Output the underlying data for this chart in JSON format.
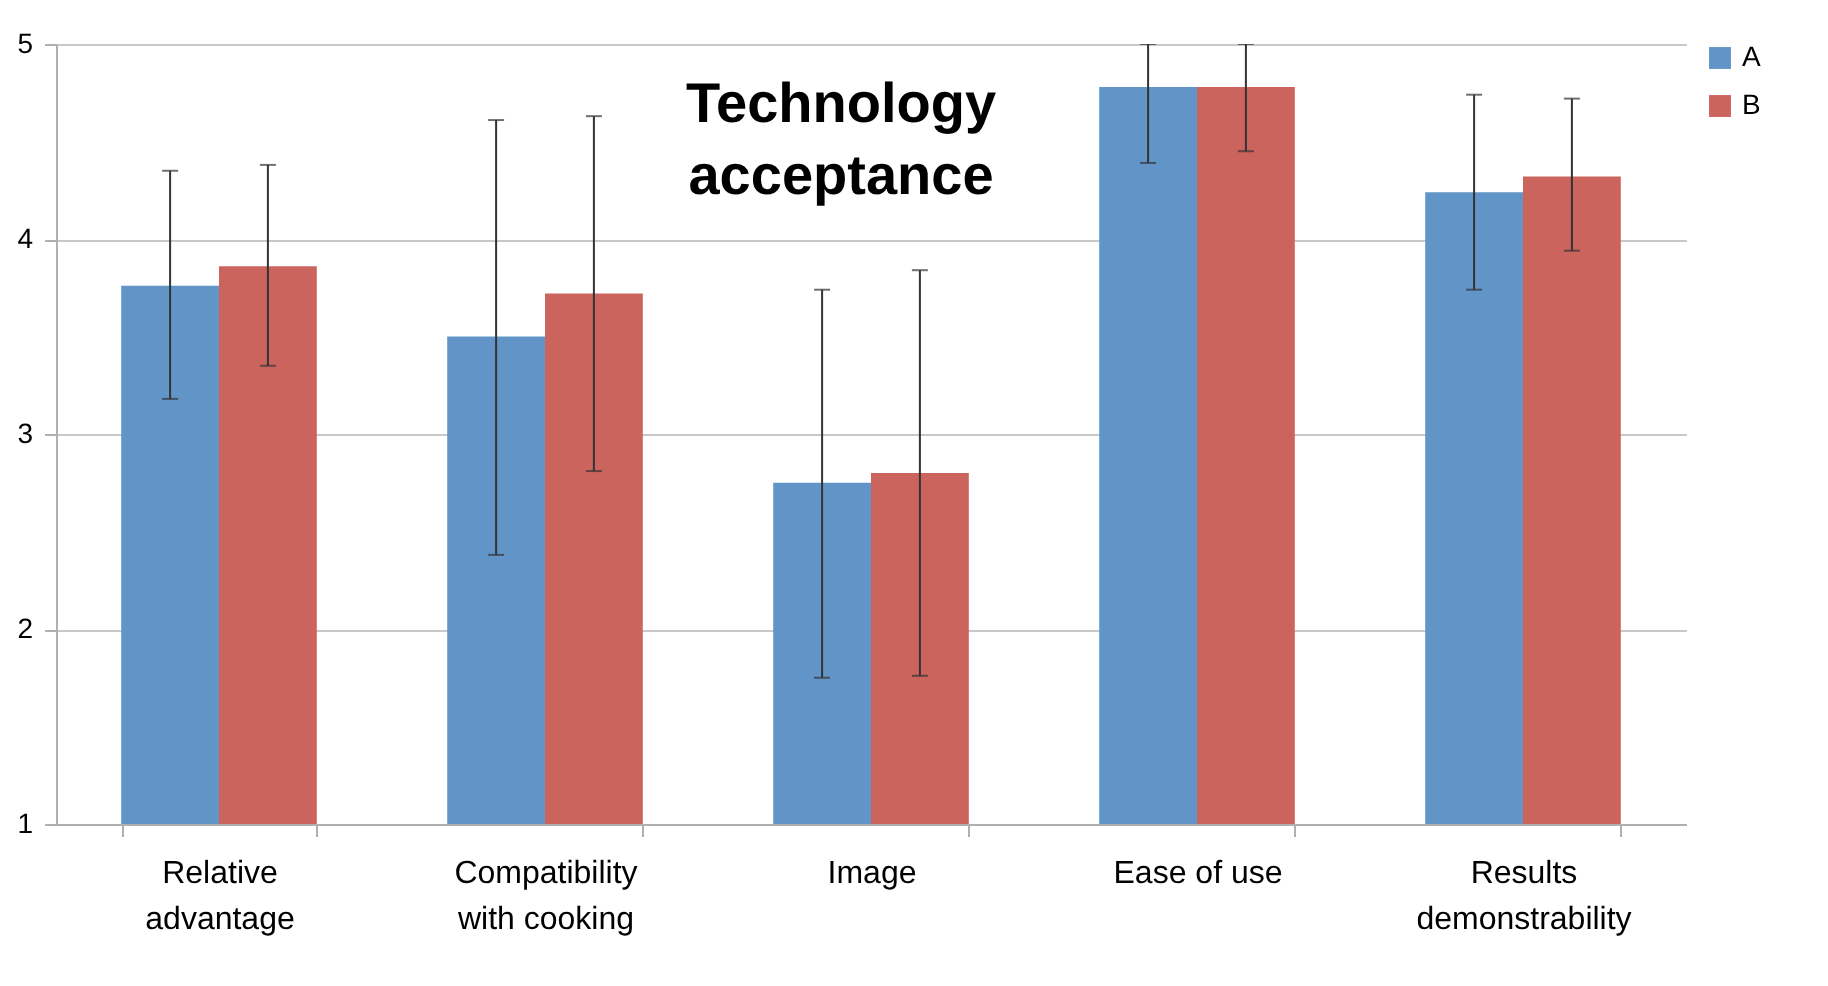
{
  "chart_data": {
    "type": "bar",
    "title": "Technology\nacceptance",
    "categories": [
      "Relative\nadvantage",
      "Compatibility\nwith cooking",
      "Image",
      "Ease of use",
      "Results\ndemonstrability"
    ],
    "series": [
      {
        "name": "A",
        "color": "#6195c8",
        "values": [
          3.76,
          3.5,
          2.75,
          4.78,
          4.24
        ],
        "errors": [
          [
            3.18,
            4.35
          ],
          [
            2.38,
            4.61
          ],
          [
            1.75,
            3.74
          ],
          [
            4.39,
            5
          ],
          [
            3.74,
            4.74
          ]
        ]
      },
      {
        "name": "B",
        "color": "#cc645e",
        "values": [
          3.86,
          3.72,
          2.8,
          4.78,
          4.32
        ],
        "errors": [
          [
            3.35,
            4.38
          ],
          [
            2.81,
            4.63
          ],
          [
            1.76,
            3.84
          ],
          [
            4.45,
            5
          ],
          [
            3.94,
            4.72
          ]
        ]
      }
    ],
    "ylim": [
      1,
      5
    ],
    "yticks": [
      1,
      2,
      3,
      4,
      5
    ],
    "grid": "y",
    "legend": "right"
  }
}
